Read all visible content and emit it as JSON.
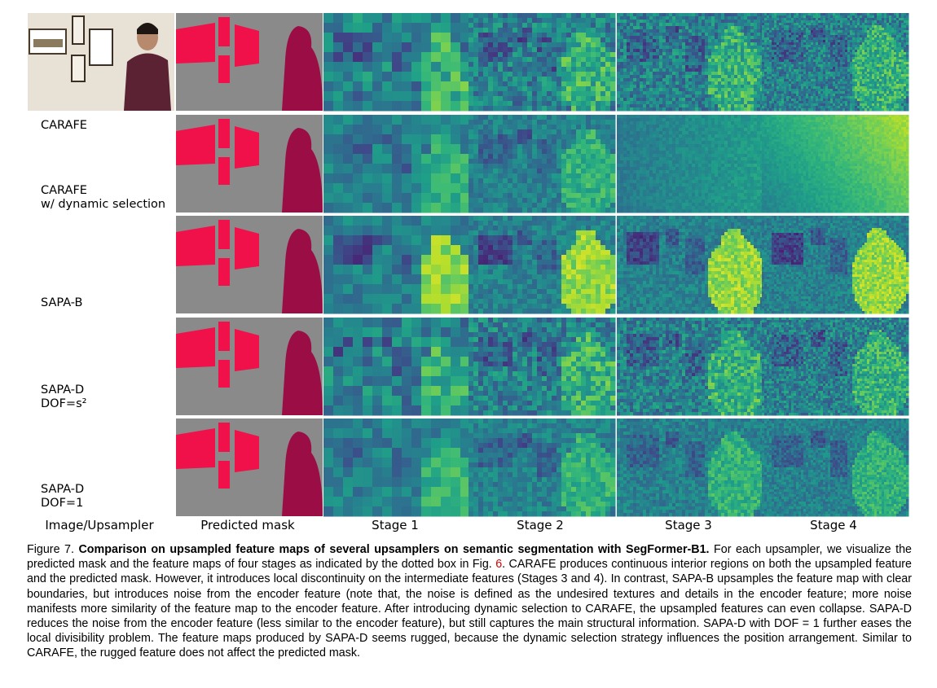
{
  "figure": {
    "columns": [
      "Image/Upsampler",
      "Predicted mask",
      "Stage 1",
      "Stage 2",
      "Stage 3",
      "Stage 4"
    ],
    "rows": [
      {
        "name": "input",
        "label": [
          ""
        ]
      },
      {
        "name": "carafe",
        "label": [
          "CARAFE",
          "",
          "CARAFE",
          "w/ dynamic selection"
        ]
      },
      {
        "name": "sapa-b",
        "label": [
          "SAPA-B"
        ]
      },
      {
        "name": "sapa-d-s2",
        "label": [
          "SAPA-D",
          "DOF=s²"
        ]
      },
      {
        "name": "sapa-d-1",
        "label": [
          "SAPA-D",
          "DOF=1"
        ]
      }
    ],
    "colors": {
      "mask_wall": "#8a8a8a",
      "mask_frame": "#f0104a",
      "mask_person": "#9a0d45",
      "viridis_low": "#3b1c6e",
      "viridis_mid": "#2a8c8a",
      "viridis_high": "#f2e51e"
    }
  },
  "caption": {
    "prefix": "Figure 7. ",
    "bold": "Comparison on upsampled feature maps of several upsamplers on semantic segmentation with SegFormer-B1.",
    "body_before_ref": " For each upsampler, we visualize the predicted mask and the feature maps of four stages as indicated by the dotted box in Fig. ",
    "ref": "6",
    "body_after_ref": ". CARAFE produces continuous interior regions on both the upsampled feature and the predicted mask. However, it introduces local discontinuity on the intermediate features (Stages 3 and 4). In contrast, SAPA-B upsamples the feature map with clear boundaries, but introduces noise from the encoder feature (note that, the noise is defined as the undesired textures and details in the encoder feature; more noise manifests more similarity of the feature map to the encoder feature. After introducing dynamic selection to CARAFE, the upsampled features can even collapse. SAPA-D reduces the noise from the encoder feature (less similar to the encoder feature), but still captures the main structural information. SAPA-D with DOF = 1 further eases the local divisibility problem. The feature maps produced by SAPA-D seems rugged, because the dynamic selection strategy influences the position arrangement. Similar to CARAFE, the rugged feature does not affect the predicted mask."
  }
}
